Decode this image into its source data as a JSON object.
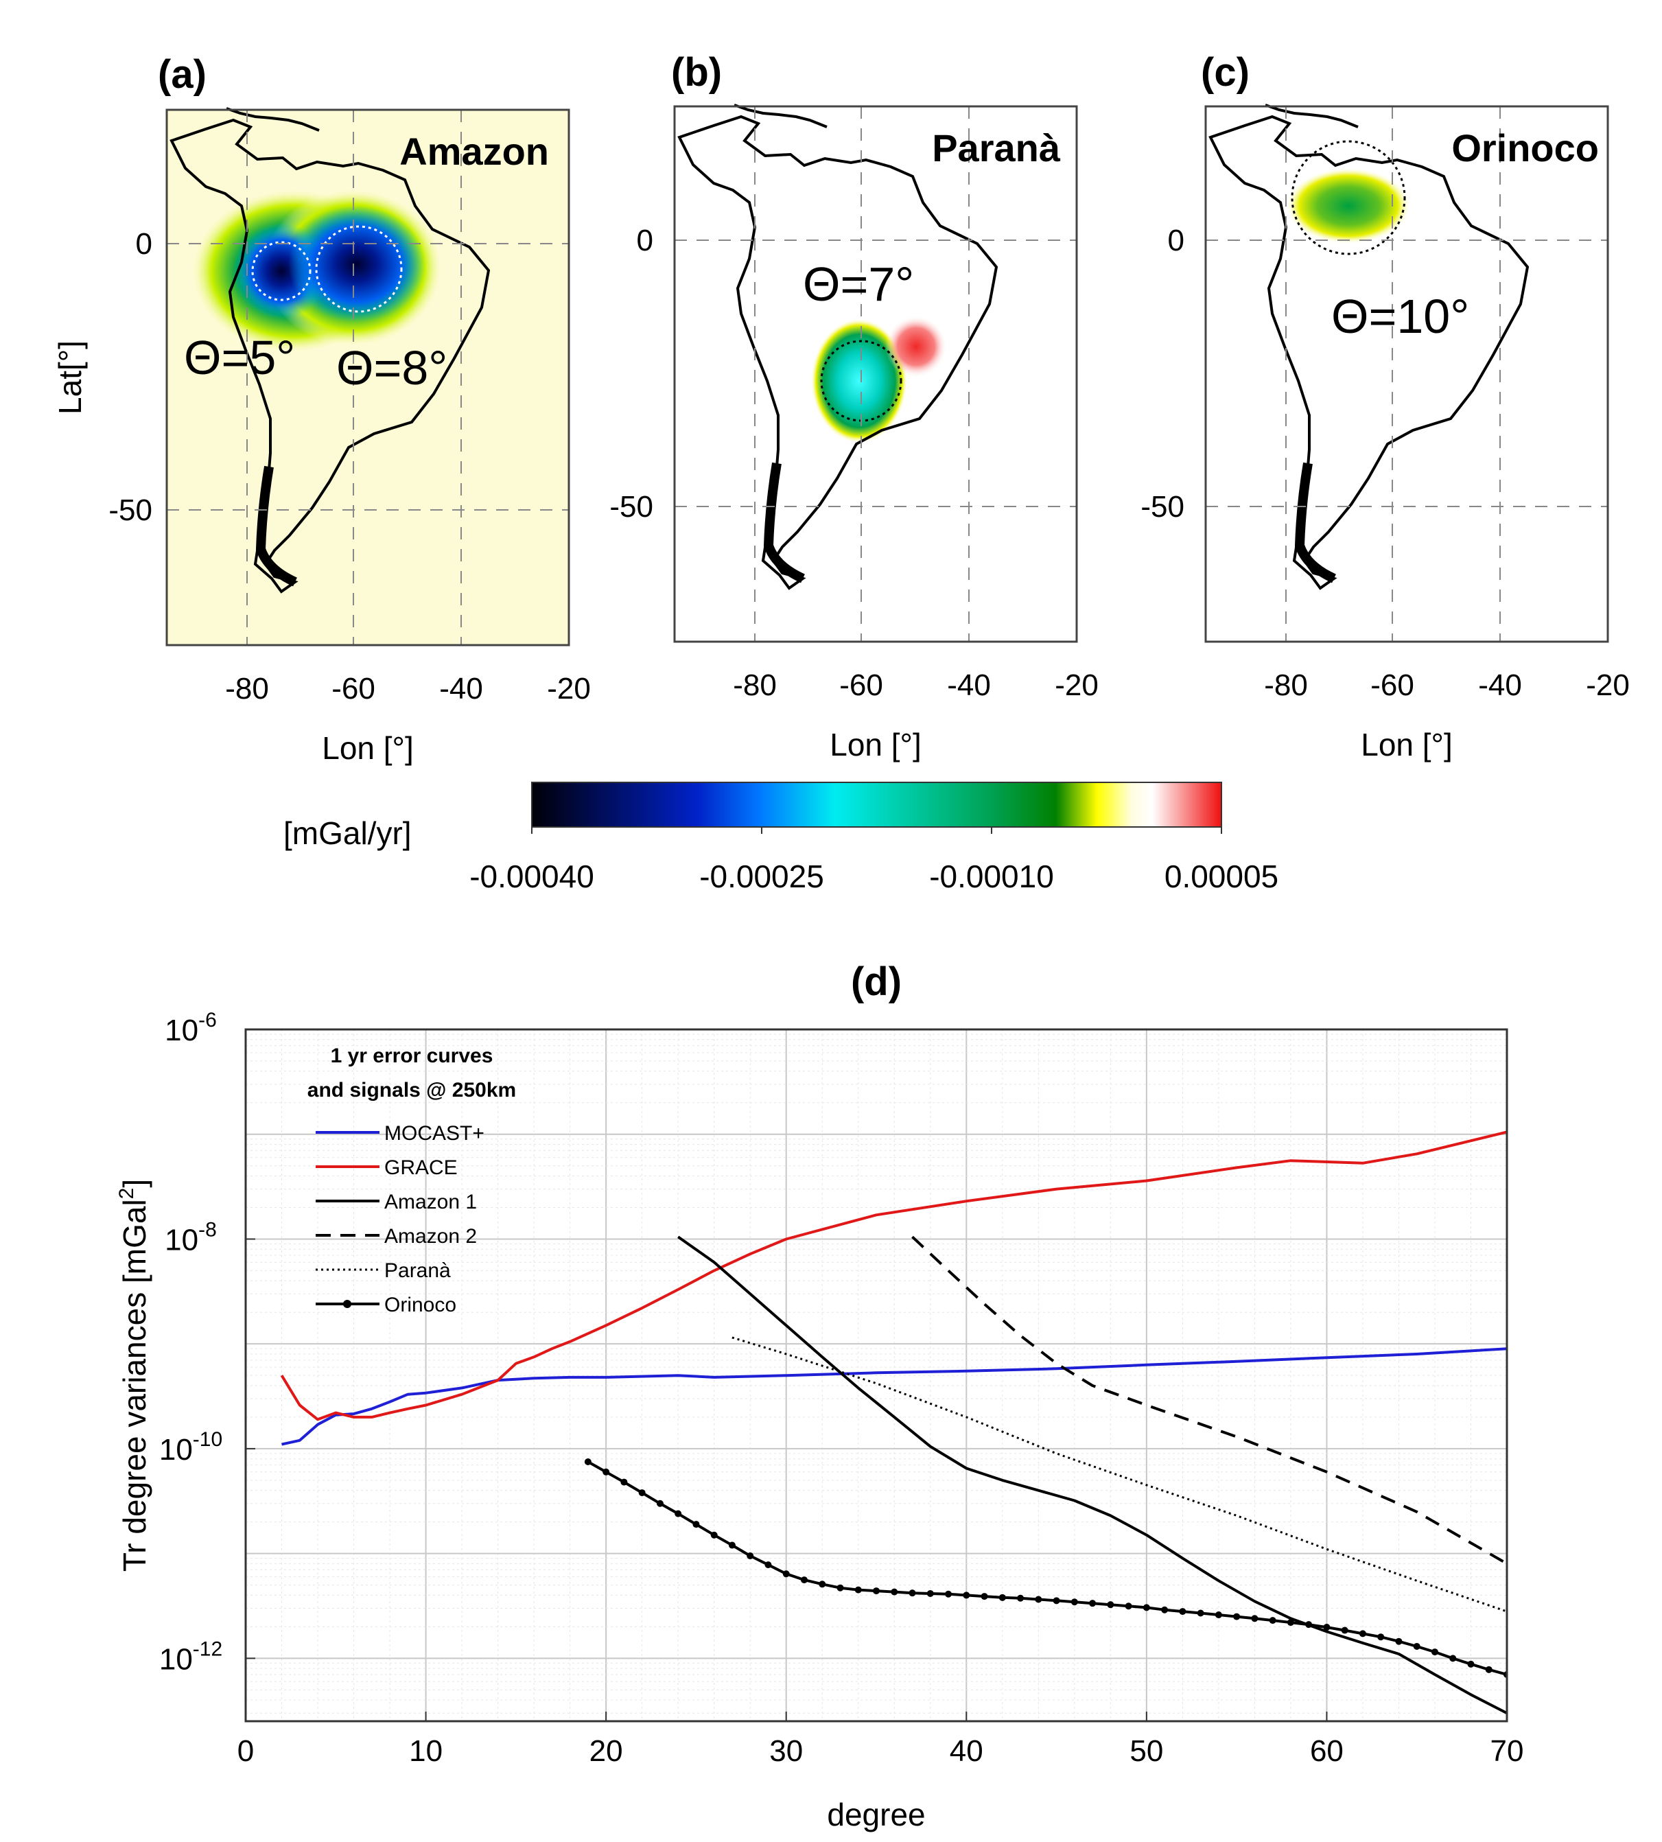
{
  "maps": [
    {
      "id": "a",
      "panel_label": "(a)",
      "region": "Amazon",
      "theta_labels": [
        "Θ=5°",
        "Θ=8°"
      ],
      "lon_ticks": [
        "-80",
        "-60",
        "-40",
        "-20"
      ],
      "lat_ticks": [
        "0",
        "-50"
      ],
      "xlabel": "Lon [°]",
      "ylabel": "Lat[°]"
    },
    {
      "id": "b",
      "panel_label": "(b)",
      "region": "Paranà",
      "theta_labels": [
        "Θ=7°"
      ],
      "lon_ticks": [
        "-80",
        "-60",
        "-40",
        "-20"
      ],
      "lat_ticks": [
        "0",
        "-50"
      ],
      "xlabel": "Lon [°]"
    },
    {
      "id": "c",
      "panel_label": "(c)",
      "region": "Orinoco",
      "theta_labels": [
        "Θ=10°"
      ],
      "lon_ticks": [
        "-80",
        "-60",
        "-40",
        "-20"
      ],
      "lat_ticks": [
        "0",
        "-50"
      ],
      "xlabel": "Lon [°]"
    }
  ],
  "colorbar": {
    "unit_label": "[mGal/yr]",
    "ticks": [
      "-0.00040",
      "-0.00025",
      "-0.00010",
      "0.00005"
    ],
    "range": [
      -0.0004,
      5e-05
    ]
  },
  "chart_data": {
    "type": "line",
    "title": "(d)",
    "xlabel": "degree",
    "ylabel": "Tr degree variances [mGal²]",
    "ylabel_parts": [
      "Tr degree variances [mGal",
      "2",
      "]"
    ],
    "yscale": "log",
    "xlim": [
      0,
      70
    ],
    "ylim_exp": [
      -12.6,
      -6
    ],
    "x_ticks": [
      "0",
      "10",
      "20",
      "30",
      "40",
      "50",
      "60",
      "70"
    ],
    "y_ticks": [
      {
        "exp": -6,
        "base": "10",
        "power": "-6"
      },
      {
        "exp": -8,
        "base": "10",
        "power": "-8"
      },
      {
        "exp": -10,
        "base": "10",
        "power": "-10"
      },
      {
        "exp": -12,
        "base": "10",
        "power": "-12"
      }
    ],
    "grid": true,
    "legend_title": [
      "1 yr error curves",
      "and signals @ 250km"
    ],
    "legend_position": "top-left",
    "series": [
      {
        "name": "MOCAST+",
        "color": "#1f1fd6",
        "style": "solid",
        "marker": "none",
        "x": [
          2,
          3,
          4,
          5,
          6,
          7,
          8,
          9,
          10,
          12,
          14,
          16,
          18,
          20,
          24,
          26,
          30,
          35,
          40,
          45,
          50,
          55,
          60,
          65,
          70
        ],
        "y": [
          1.1e-10,
          1.2e-10,
          1.7e-10,
          2.1e-10,
          2.15e-10,
          2.4e-10,
          2.8e-10,
          3.3e-10,
          3.4e-10,
          3.8e-10,
          4.5e-10,
          4.7e-10,
          4.8e-10,
          4.8e-10,
          5e-10,
          4.8e-10,
          5e-10,
          5.3e-10,
          5.5e-10,
          5.8e-10,
          6.3e-10,
          6.8e-10,
          7.4e-10,
          8e-10,
          9e-10
        ]
      },
      {
        "name": "GRACE",
        "color": "#e01818",
        "style": "solid",
        "marker": "none",
        "x": [
          2,
          3,
          4,
          5,
          6,
          7,
          8,
          9,
          10,
          12,
          14,
          15,
          16,
          17,
          18,
          20,
          22,
          24,
          26,
          28,
          30,
          35,
          40,
          45,
          50,
          55,
          58,
          62,
          65,
          70
        ],
        "y": [
          5e-10,
          2.6e-10,
          1.9e-10,
          2.2e-10,
          2e-10,
          2e-10,
          2.2e-10,
          2.4e-10,
          2.6e-10,
          3.3e-10,
          4.5e-10,
          6.5e-10,
          7.5e-10,
          9e-10,
          1.05e-09,
          1.5e-09,
          2.2e-09,
          3.3e-09,
          5e-09,
          7.2e-09,
          1e-08,
          1.7e-08,
          2.3e-08,
          3e-08,
          3.6e-08,
          4.8e-08,
          5.6e-08,
          5.3e-08,
          6.5e-08,
          1.05e-07
        ]
      },
      {
        "name": "Amazon 1",
        "color": "#000000",
        "style": "solid",
        "marker": "none",
        "x": [
          24,
          26,
          28,
          30,
          32,
          34,
          36,
          38,
          40,
          42,
          44,
          46,
          48,
          50,
          52,
          54,
          56,
          58,
          60,
          62,
          64,
          66,
          68,
          70
        ],
        "y": [
          1.05e-08,
          6e-09,
          3e-09,
          1.5e-09,
          7.5e-10,
          3.8e-10,
          2e-10,
          1.05e-10,
          6.5e-11,
          5e-11,
          4e-11,
          3.2e-11,
          2.3e-11,
          1.5e-11,
          9e-12,
          5.5e-12,
          3.5e-12,
          2.4e-12,
          1.8e-12,
          1.4e-12,
          1.1e-12,
          7e-13,
          4.5e-13,
          3e-13
        ]
      },
      {
        "name": "Amazon 2",
        "color": "#000000",
        "style": "dashed",
        "marker": "none",
        "x": [
          37,
          39,
          41,
          43,
          45,
          47,
          50,
          55,
          60,
          65,
          70
        ],
        "y": [
          1.05e-08,
          5e-09,
          2.4e-09,
          1.2e-09,
          6.5e-10,
          4e-10,
          2.6e-10,
          1.3e-10,
          6e-11,
          2.5e-11,
          8e-12
        ]
      },
      {
        "name": "Paranà",
        "color": "#000000",
        "style": "dotted",
        "marker": "none",
        "x": [
          27,
          30,
          35,
          40,
          45,
          50,
          55,
          60,
          65,
          70
        ],
        "y": [
          1.15e-09,
          8e-10,
          4.2e-10,
          2e-10,
          9e-11,
          4.5e-11,
          2.3e-11,
          1.1e-11,
          5.5e-12,
          2.8e-12
        ]
      },
      {
        "name": "Orinoco",
        "color": "#000000",
        "style": "solid",
        "marker": "dot",
        "x": [
          19,
          20,
          21,
          22,
          23,
          24,
          25,
          26,
          27,
          28,
          29,
          30,
          31,
          32,
          33,
          34,
          35,
          36,
          37,
          38,
          39,
          40,
          41,
          42,
          43,
          44,
          45,
          46,
          47,
          48,
          49,
          50,
          51,
          52,
          53,
          54,
          55,
          56,
          57,
          58,
          59,
          60,
          61,
          62,
          63,
          64,
          65,
          66,
          67,
          68,
          69,
          70
        ],
        "y": [
          7.5e-11,
          6e-11,
          4.8e-11,
          3.8e-11,
          3e-11,
          2.4e-11,
          1.9e-11,
          1.5e-11,
          1.2e-11,
          9.5e-12,
          7.8e-12,
          6.4e-12,
          5.6e-12,
          5.1e-12,
          4.7e-12,
          4.5e-12,
          4.4e-12,
          4.3e-12,
          4.2e-12,
          4.15e-12,
          4.1e-12,
          4e-12,
          3.9e-12,
          3.8e-12,
          3.75e-12,
          3.65e-12,
          3.55e-12,
          3.45e-12,
          3.35e-12,
          3.25e-12,
          3.15e-12,
          3.05e-12,
          2.9e-12,
          2.8e-12,
          2.7e-12,
          2.6e-12,
          2.5e-12,
          2.4e-12,
          2.3e-12,
          2.2e-12,
          2.1e-12,
          1.98e-12,
          1.85e-12,
          1.72e-12,
          1.6e-12,
          1.45e-12,
          1.3e-12,
          1.15e-12,
          1e-12,
          8.8e-13,
          7.8e-13,
          7e-13
        ]
      }
    ]
  }
}
